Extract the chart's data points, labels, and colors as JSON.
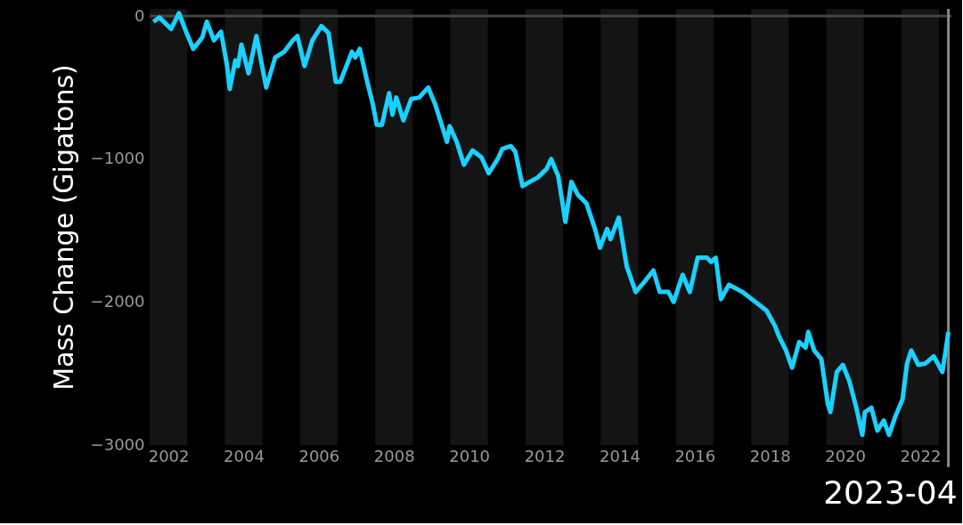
{
  "chart_data": {
    "type": "line",
    "ylabel": "Mass Change (Gigatons)",
    "x": [
      2002.1,
      2002.26,
      2002.57,
      2002.78,
      2002.97,
      2003.16,
      2003.4,
      2003.52,
      2003.71,
      2003.9,
      2004.06,
      2004.13,
      2004.28,
      2004.35,
      2004.44,
      2004.63,
      2004.84,
      2005.1,
      2005.34,
      2005.58,
      2005.81,
      2005.93,
      2006.12,
      2006.33,
      2006.57,
      2006.76,
      2006.95,
      2007.07,
      2007.28,
      2007.38,
      2007.47,
      2007.59,
      2007.78,
      2007.94,
      2008.04,
      2008.18,
      2008.37,
      2008.46,
      2008.56,
      2008.75,
      2008.96,
      2009.17,
      2009.41,
      2009.6,
      2009.84,
      2009.91,
      2009.98,
      2010.17,
      2010.36,
      2010.59,
      2010.83,
      2011.02,
      2011.26,
      2011.38,
      2011.61,
      2011.73,
      2011.92,
      2012.11,
      2012.32,
      2012.56,
      2012.68,
      2012.87,
      2013.06,
      2013.22,
      2013.39,
      2013.62,
      2013.86,
      2013.98,
      2014.17,
      2014.26,
      2014.48,
      2014.69,
      2014.93,
      2015.16,
      2015.4,
      2015.57,
      2015.8,
      2015.94,
      2016.18,
      2016.37,
      2016.58,
      2016.82,
      2016.94,
      2017.06,
      2017.2,
      2017.41,
      2017.77,
      2018.41,
      2018.64,
      2018.74,
      2018.93,
      2019.09,
      2019.28,
      2019.45,
      2019.52,
      2019.68,
      2019.87,
      2020.04,
      2020.11,
      2020.28,
      2020.44,
      2020.61,
      2020.8,
      2020.96,
      2021.03,
      2021.2,
      2021.36,
      2021.53,
      2021.67,
      2021.84,
      2022.03,
      2022.15,
      2022.26,
      2022.45,
      2022.64,
      2022.86,
      2023.09,
      2023.25
    ],
    "series": [
      {
        "color": "#1ad1ff",
        "values": [
          -40,
          -10,
          -90,
          20,
          -110,
          -230,
          -150,
          -40,
          -170,
          -110,
          -350,
          -510,
          -310,
          -350,
          -200,
          -400,
          -140,
          -500,
          -290,
          -250,
          -170,
          -140,
          -350,
          -170,
          -70,
          -120,
          -460,
          -460,
          -320,
          -250,
          -290,
          -230,
          -450,
          -620,
          -760,
          -760,
          -540,
          -690,
          -570,
          -730,
          -580,
          -570,
          -500,
          -620,
          -820,
          -880,
          -770,
          -880,
          -1040,
          -940,
          -990,
          -1100,
          -1000,
          -930,
          -910,
          -950,
          -1190,
          -1160,
          -1130,
          -1070,
          -1000,
          -1120,
          -1440,
          -1160,
          -1250,
          -1310,
          -1500,
          -1620,
          -1490,
          -1560,
          -1410,
          -1750,
          -1930,
          -1860,
          -1780,
          -1930,
          -1930,
          -2000,
          -1810,
          -1930,
          -1690,
          -1690,
          -1720,
          -1690,
          -1980,
          -1880,
          -1930,
          -2060,
          -2170,
          -2240,
          -2340,
          -2460,
          -2280,
          -2320,
          -2210,
          -2340,
          -2400,
          -2710,
          -2770,
          -2490,
          -2440,
          -2550,
          -2740,
          -2930,
          -2770,
          -2740,
          -2900,
          -2830,
          -2930,
          -2800,
          -2680,
          -2430,
          -2340,
          -2440,
          -2430,
          -2380,
          -2490,
          -2210
        ]
      }
    ],
    "xlim": [
      2002.0,
      2023.33
    ],
    "ylim": [
      -3000,
      50
    ],
    "xticks": [
      {
        "value": 2002.5,
        "label": "2002"
      },
      {
        "value": 2004.5,
        "label": "2004"
      },
      {
        "value": 2006.5,
        "label": "2006"
      },
      {
        "value": 2008.5,
        "label": "2008"
      },
      {
        "value": 2010.5,
        "label": "2010"
      },
      {
        "value": 2012.5,
        "label": "2012"
      },
      {
        "value": 2014.5,
        "label": "2014"
      },
      {
        "value": 2016.5,
        "label": "2016"
      },
      {
        "value": 2018.5,
        "label": "2018"
      },
      {
        "value": 2020.5,
        "label": "2020"
      },
      {
        "value": 2022.5,
        "label": "2022"
      }
    ],
    "yticks": [
      0,
      -1000,
      -2000,
      -3000
    ],
    "bands": [
      {
        "axis": "x",
        "from": 2002,
        "to": 2003,
        "color": "#141414"
      },
      {
        "axis": "x",
        "from": 2004,
        "to": 2005,
        "color": "#141414"
      },
      {
        "axis": "x",
        "from": 2006,
        "to": 2007,
        "color": "#141414"
      },
      {
        "axis": "x",
        "from": 2008,
        "to": 2009,
        "color": "#141414"
      },
      {
        "axis": "x",
        "from": 2010,
        "to": 2011,
        "color": "#141414"
      },
      {
        "axis": "x",
        "from": 2012,
        "to": 2013,
        "color": "#141414"
      },
      {
        "axis": "x",
        "from": 2014,
        "to": 2015,
        "color": "#141414"
      },
      {
        "axis": "x",
        "from": 2016,
        "to": 2017,
        "color": "#141414"
      },
      {
        "axis": "x",
        "from": 2018,
        "to": 2019,
        "color": "#141414"
      },
      {
        "axis": "x",
        "from": 2020,
        "to": 2021,
        "color": "#141414"
      },
      {
        "axis": "x",
        "from": 2022,
        "to": 2023,
        "color": "#141414"
      }
    ],
    "ref_lines": [
      {
        "axis": "y",
        "value": 0,
        "color": "#444444"
      },
      {
        "axis": "x",
        "value": 2023.25,
        "label": "2023-04",
        "color": "#888888"
      }
    ],
    "grid": false,
    "marker": "none",
    "line_style": "solid"
  }
}
